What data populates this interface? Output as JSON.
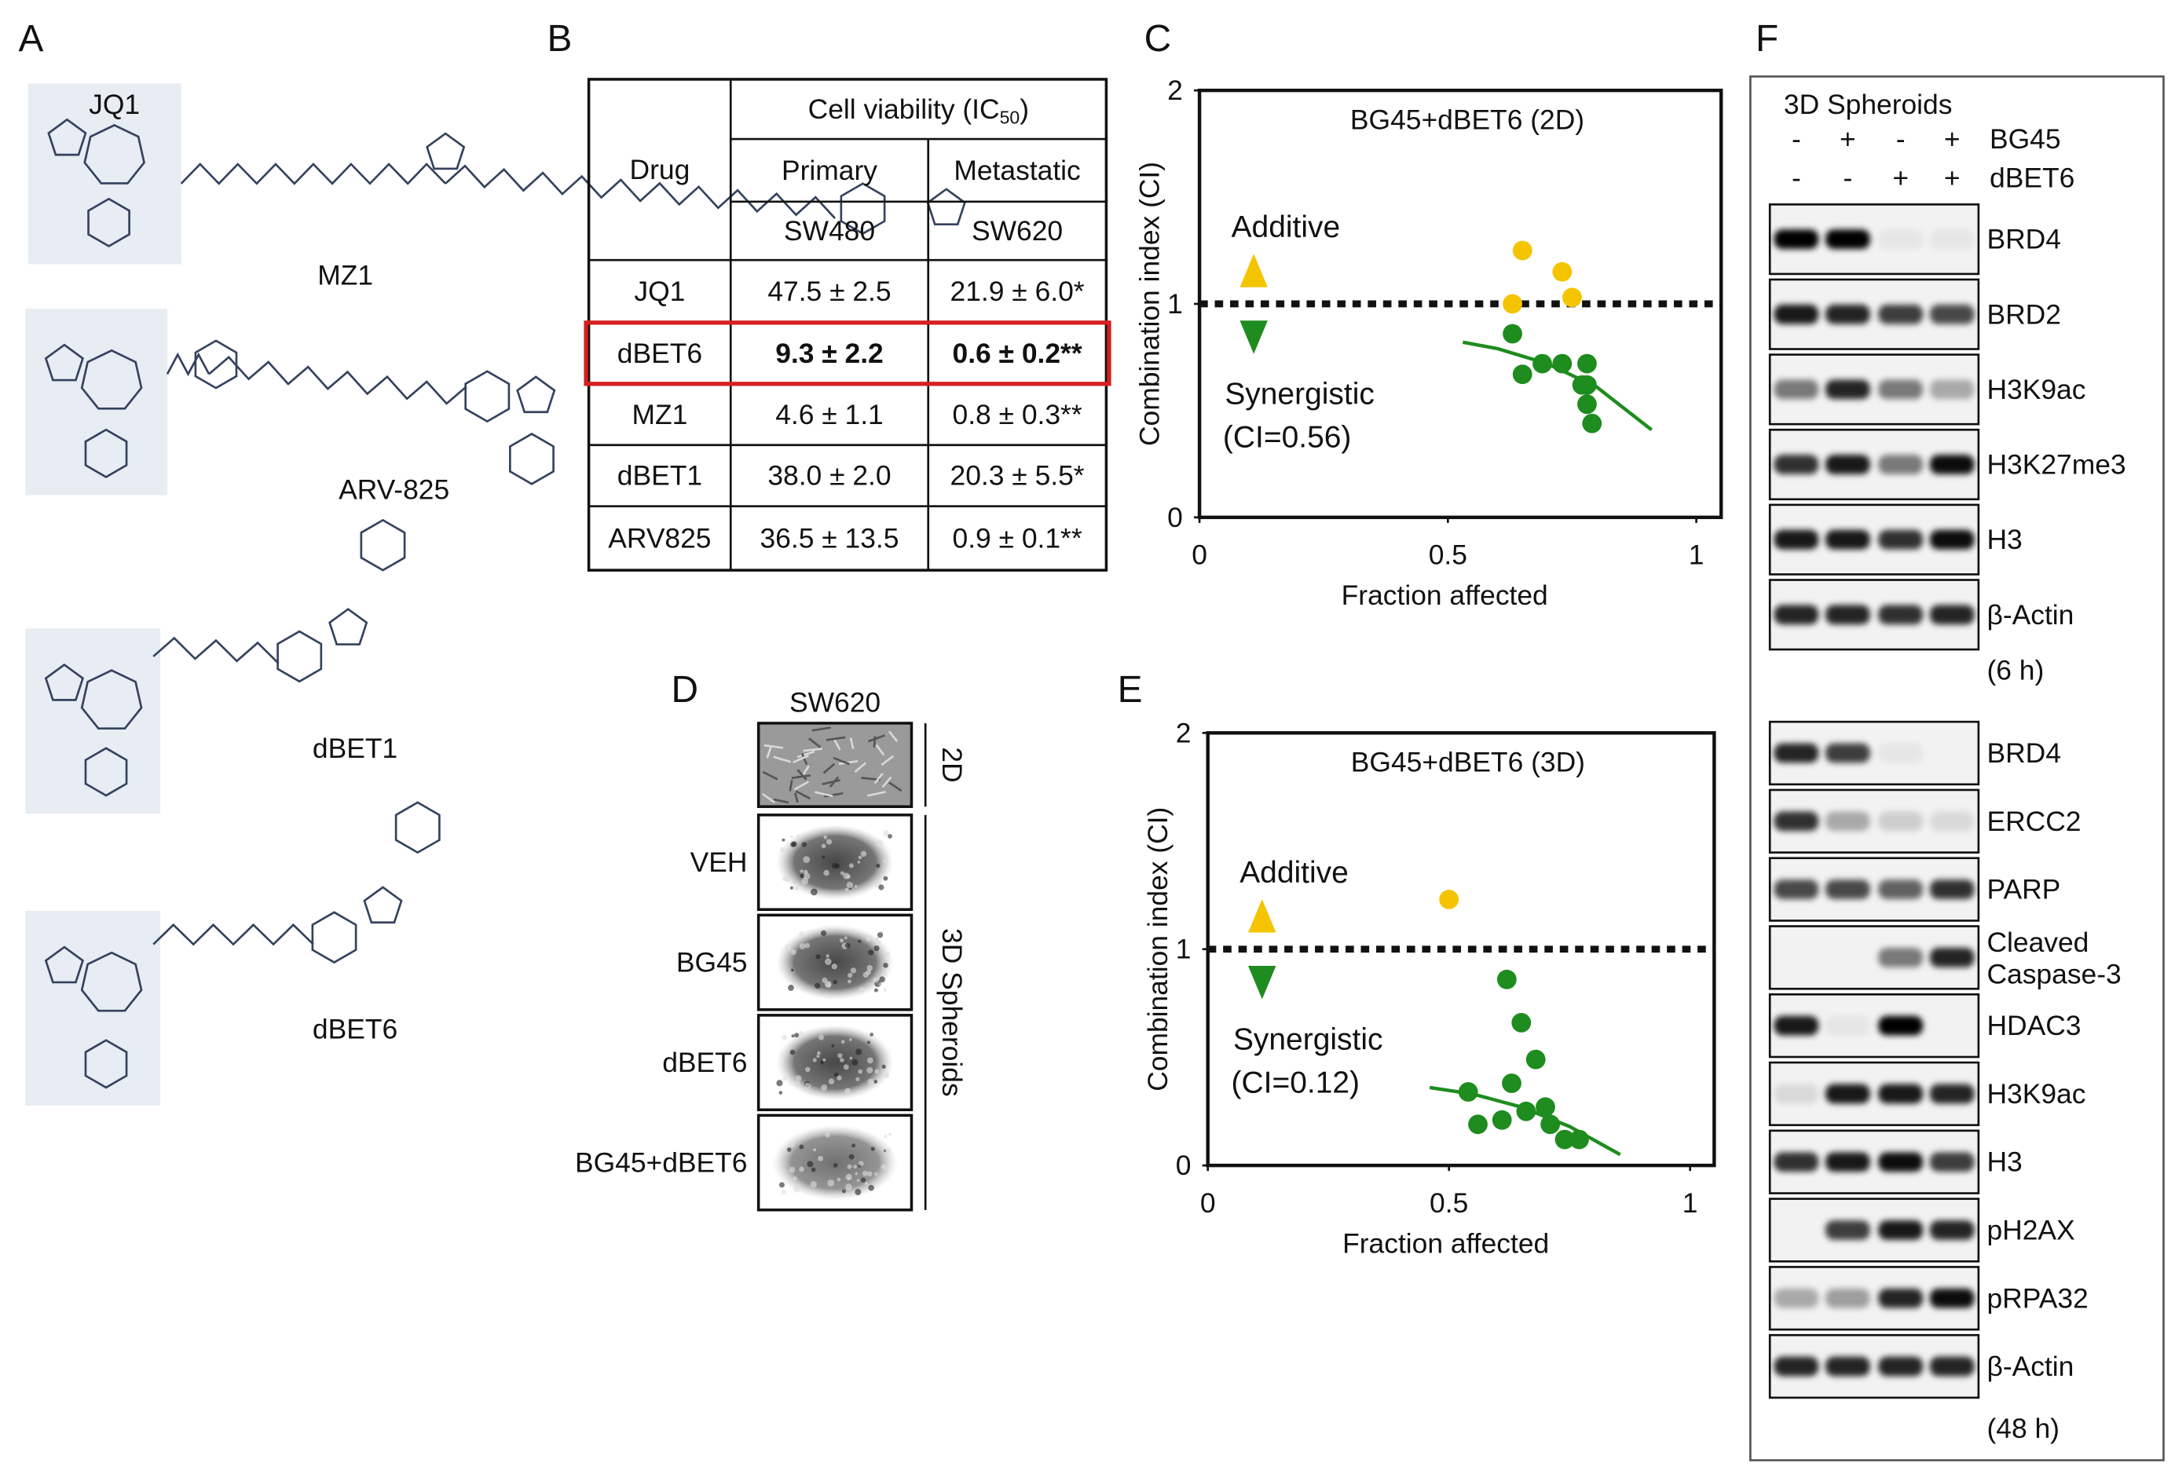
{
  "panel_labels": [
    "A",
    "B",
    "C",
    "D",
    "E",
    "F"
  ],
  "compounds": {
    "core_label": "JQ1",
    "names": [
      "MZ1",
      "ARV-825",
      "dBET1",
      "dBET6"
    ]
  },
  "table": {
    "drug_header": "Drug",
    "group_header": {
      "text": "Cell viability  (IC",
      "sub": "50",
      "close": ")"
    },
    "columns": [
      "Primary",
      "Metastatic"
    ],
    "cell_lines": [
      "SW480",
      "SW620"
    ],
    "rows": [
      [
        "JQ1",
        "47.5 ± 2.5",
        "21.9 ± 6.0*"
      ],
      [
        "dBET6",
        "9.3 ± 2.2",
        "0.6 ± 0.2**"
      ],
      [
        "MZ1",
        "4.6 ± 1.1",
        "0.8 ± 0.3**"
      ],
      [
        "dBET1",
        "38.0 ± 2.0",
        "20.3 ± 5.5*"
      ],
      [
        "ARV825",
        "36.5 ± 13.5",
        "0.9 ± 0.1**"
      ]
    ],
    "highlight_row": 1
  },
  "chart_data": [
    {
      "type": "scatter",
      "title": "BG45+dBET6 (2D)",
      "x_label": "Fraction affected",
      "y_label": "Combination index (CI)",
      "xlim": [
        0,
        1.05
      ],
      "ylim": [
        0,
        2
      ],
      "xticks": [
        0,
        0.5,
        1
      ],
      "yticks": [
        0,
        1,
        2
      ],
      "reference_line": 1,
      "annotations": {
        "additive": "Additive",
        "synergistic": "Synergistic",
        "ci": "(CI=0.56)"
      },
      "series": [
        {
          "color": "#f5c400",
          "x": [
            0.63,
            0.65,
            0.73,
            0.75
          ],
          "values": [
            1.0,
            1.25,
            1.15,
            1.03
          ]
        },
        {
          "color": "#1e8c1e",
          "x": [
            0.63,
            0.65,
            0.69,
            0.73,
            0.78,
            0.78,
            0.78,
            0.79,
            0.77
          ],
          "values": [
            0.86,
            0.67,
            0.72,
            0.72,
            0.72,
            0.62,
            0.53,
            0.44,
            0.62
          ]
        },
        {
          "color": "#1e8c1e",
          "style": "line",
          "x": [
            0.53,
            0.6,
            0.7,
            0.8,
            0.91
          ],
          "values": [
            0.82,
            0.79,
            0.72,
            0.61,
            0.41
          ]
        }
      ]
    },
    {
      "type": "scatter",
      "title": "BG45+dBET6 (3D)",
      "x_label": "Fraction affected",
      "y_label": "Combination index (CI)",
      "xlim": [
        0,
        1.05
      ],
      "ylim": [
        0,
        2
      ],
      "xticks": [
        0,
        0.5,
        1
      ],
      "yticks": [
        0,
        1,
        2
      ],
      "reference_line": 1,
      "annotations": {
        "additive": "Additive",
        "synergistic": "Synergistic",
        "ci": "(CI=0.12)"
      },
      "series": [
        {
          "color": "#f5c400",
          "x": [
            0.5
          ],
          "values": [
            1.23
          ]
        },
        {
          "color": "#1e8c1e",
          "x": [
            0.62,
            0.65,
            0.68,
            0.54,
            0.61,
            0.56,
            0.63,
            0.66,
            0.7,
            0.71,
            0.74,
            0.77
          ],
          "values": [
            0.86,
            0.66,
            0.49,
            0.34,
            0.21,
            0.19,
            0.38,
            0.25,
            0.27,
            0.19,
            0.12,
            0.12
          ]
        },
        {
          "color": "#1e8c1e",
          "style": "line",
          "x": [
            0.46,
            0.55,
            0.65,
            0.75,
            0.855
          ],
          "values": [
            0.36,
            0.33,
            0.27,
            0.18,
            0.05
          ]
        }
      ]
    }
  ],
  "spheroids": {
    "title": "SW620",
    "label_2d": "2D",
    "label_3d": "3D Spheroids",
    "rows": [
      "VEH",
      "BG45",
      "dBET6",
      "BG45+dBET6"
    ]
  },
  "blots": {
    "title": "3D Spheroids",
    "treatments": [
      {
        "name": "BG45",
        "signs": [
          "-",
          "+",
          "-",
          "+"
        ]
      },
      {
        "name": "dBET6",
        "signs": [
          "-",
          "-",
          "+",
          "+"
        ]
      }
    ],
    "groups": [
      {
        "time": "(6 h)",
        "proteins": [
          {
            "name": "BRD4",
            "intensity": [
              1,
              1,
              0.05,
              0.05
            ]
          },
          {
            "name": "BRD2",
            "intensity": [
              0.9,
              0.85,
              0.75,
              0.7
            ]
          },
          {
            "name": "H3K9ac",
            "intensity": [
              0.5,
              0.85,
              0.5,
              0.3
            ]
          },
          {
            "name": "H3K27me3",
            "intensity": [
              0.8,
              0.9,
              0.5,
              0.95
            ]
          },
          {
            "name": "H3",
            "intensity": [
              0.9,
              0.9,
              0.8,
              0.95
            ]
          },
          {
            "name": "β-Actin",
            "intensity": [
              0.85,
              0.85,
              0.8,
              0.85
            ]
          }
        ]
      },
      {
        "time": "(48 h)",
        "proteins": [
          {
            "name": "BRD4",
            "intensity": [
              0.85,
              0.75,
              0.05,
              0
            ]
          },
          {
            "name": "ERCC2",
            "intensity": [
              0.8,
              0.3,
              0.15,
              0.1
            ]
          },
          {
            "name": "PARP",
            "intensity": [
              0.7,
              0.7,
              0.6,
              0.8
            ]
          },
          {
            "name": [
              "Cleaved",
              "Caspase-3"
            ],
            "intensity": [
              0,
              0,
              0.5,
              0.85
            ]
          },
          {
            "name": "HDAC3",
            "intensity": [
              0.9,
              0.05,
              1,
              0
            ]
          },
          {
            "name": "H3K9ac",
            "intensity": [
              0.1,
              0.9,
              0.9,
              0.85
            ]
          },
          {
            "name": "H3",
            "intensity": [
              0.8,
              0.9,
              0.95,
              0.75
            ]
          },
          {
            "name": "pH2AX",
            "intensity": [
              0,
              0.75,
              0.9,
              0.85
            ]
          },
          {
            "name": "pRPA32",
            "intensity": [
              0.3,
              0.35,
              0.85,
              0.95
            ]
          },
          {
            "name": "β-Actin",
            "intensity": [
              0.85,
              0.85,
              0.85,
              0.85
            ]
          }
        ]
      }
    ]
  }
}
